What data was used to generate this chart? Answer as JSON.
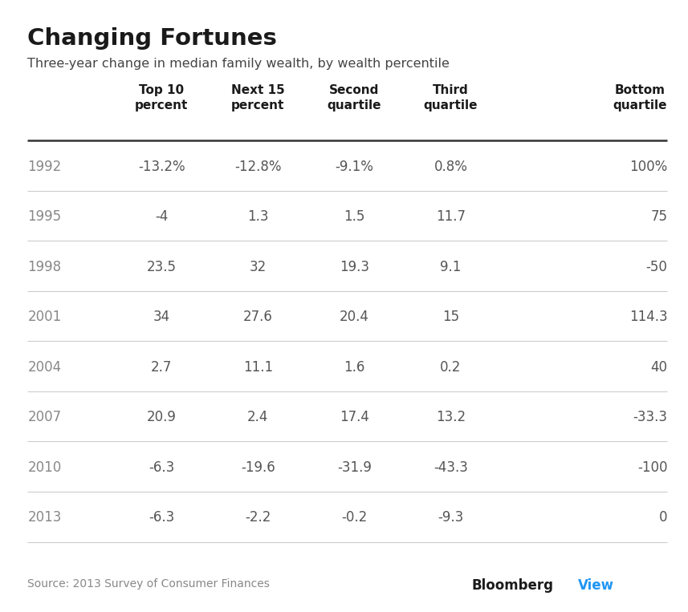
{
  "title": "Changing Fortunes",
  "subtitle": "Three-year change in median family wealth, by wealth percentile",
  "col_headers": [
    "",
    "Top 10\npercent",
    "Next 15\npercent",
    "Second\nquartile",
    "Third\nquartile",
    "Bottom\nquartile"
  ],
  "rows": [
    [
      "1992",
      "-13.2%",
      "-12.8%",
      "-9.1%",
      "0.8%",
      "100%"
    ],
    [
      "1995",
      "-4",
      "1.3",
      "1.5",
      "11.7",
      "75"
    ],
    [
      "1998",
      "23.5",
      "32",
      "19.3",
      "9.1",
      "-50"
    ],
    [
      "2001",
      "34",
      "27.6",
      "20.4",
      "15",
      "114.3"
    ],
    [
      "2004",
      "2.7",
      "11.1",
      "1.6",
      "0.2",
      "40"
    ],
    [
      "2007",
      "20.9",
      "2.4",
      "17.4",
      "13.2",
      "-33.3"
    ],
    [
      "2010",
      "-6.3",
      "-19.6",
      "-31.9",
      "-43.3",
      "-100"
    ],
    [
      "2013",
      "-6.3",
      "-2.2",
      "-0.2",
      "-9.3",
      "0"
    ]
  ],
  "source_text": "Source: 2013 Survey of Consumer Finances",
  "bloomberg_text": "Bloomberg",
  "bloomberg_view_text": "View",
  "bg_color": "#ffffff",
  "title_color": "#1a1a1a",
  "subtitle_color": "#444444",
  "header_color": "#1a1a1a",
  "year_color": "#888888",
  "data_color": "#555555",
  "line_color": "#cccccc",
  "header_line_color": "#333333",
  "source_color": "#888888",
  "bloomberg_color": "#1a1a1a",
  "bloomberg_view_color": "#2196f3"
}
